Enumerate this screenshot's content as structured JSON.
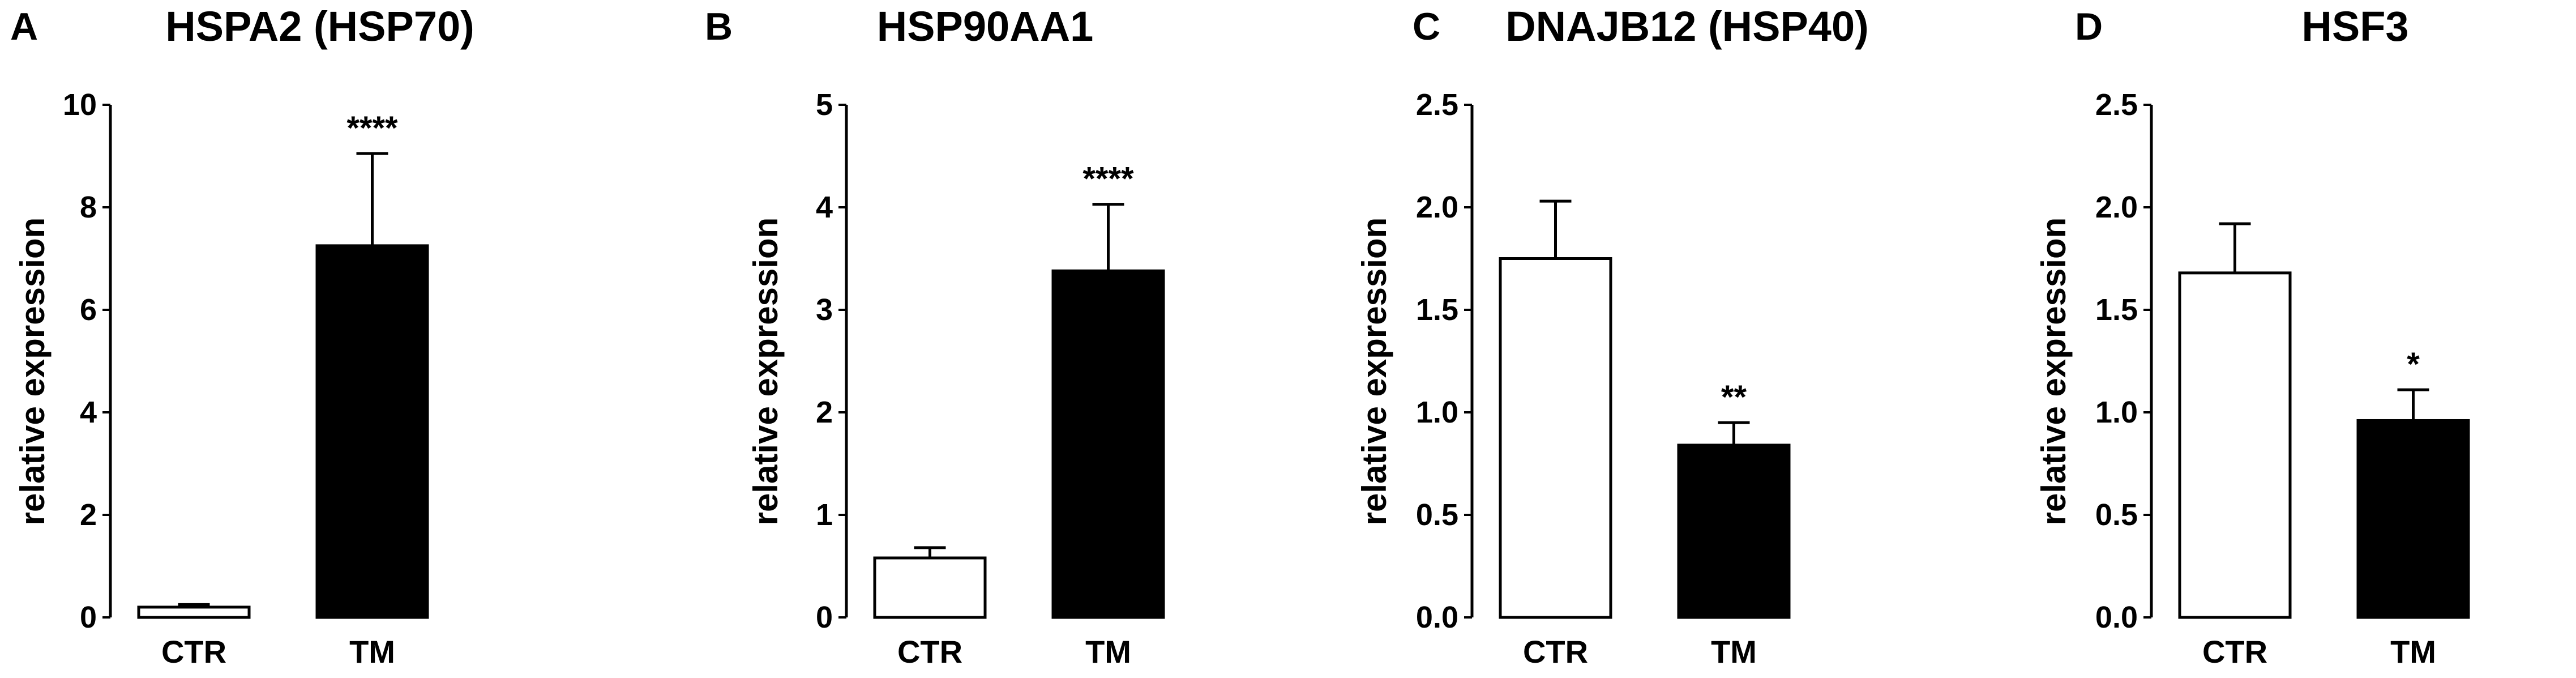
{
  "chart_data": [
    {
      "type": "bar",
      "panel": "A",
      "title": "HSPA2 (HSP70)",
      "ylabel": "relative expression",
      "categories": [
        "CTR",
        "TM"
      ],
      "values": [
        0.2,
        7.25
      ],
      "errors": [
        0.05,
        1.8
      ],
      "significance": [
        "",
        "****"
      ],
      "ylim": [
        0,
        10
      ],
      "yticks": [
        0,
        2,
        4,
        6,
        8,
        10
      ],
      "ytick_labels": [
        "0",
        "2",
        "4",
        "6",
        "8",
        "10"
      ],
      "bar_colors": [
        "#ffffff",
        "#000000"
      ]
    },
    {
      "type": "bar",
      "panel": "B",
      "title": "HSP90AA1",
      "ylabel": "relative expression",
      "categories": [
        "CTR",
        "TM"
      ],
      "values": [
        0.58,
        3.38
      ],
      "errors": [
        0.1,
        0.65
      ],
      "significance": [
        "",
        "****"
      ],
      "ylim": [
        0,
        5
      ],
      "yticks": [
        0,
        1,
        2,
        3,
        4,
        5
      ],
      "ytick_labels": [
        "0",
        "1",
        "2",
        "3",
        "4",
        "5"
      ],
      "bar_colors": [
        "#ffffff",
        "#000000"
      ]
    },
    {
      "type": "bar",
      "panel": "C",
      "title": "DNAJB12 (HSP40)",
      "ylabel": "relative expression",
      "categories": [
        "CTR",
        "TM"
      ],
      "values": [
        1.75,
        0.84
      ],
      "errors": [
        0.28,
        0.11
      ],
      "significance": [
        "",
        "**"
      ],
      "ylim": [
        0,
        2.5
      ],
      "yticks": [
        0,
        0.5,
        1,
        1.5,
        2,
        2.5
      ],
      "ytick_labels": [
        "0.0",
        "0.5",
        "1.0",
        "1.5",
        "2.0",
        "2.5"
      ],
      "bar_colors": [
        "#ffffff",
        "#000000"
      ]
    },
    {
      "type": "bar",
      "panel": "D",
      "title": "HSF3",
      "ylabel": "relative expression",
      "categories": [
        "CTR",
        "TM"
      ],
      "values": [
        1.68,
        0.96
      ],
      "errors": [
        0.24,
        0.15
      ],
      "significance": [
        "",
        "*"
      ],
      "ylim": [
        0,
        2.5
      ],
      "yticks": [
        0,
        0.5,
        1,
        1.5,
        2,
        2.5
      ],
      "ytick_labels": [
        "0.0",
        "0.5",
        "1.0",
        "1.5",
        "2.0",
        "2.5"
      ],
      "bar_colors": [
        "#ffffff",
        "#000000"
      ]
    }
  ]
}
